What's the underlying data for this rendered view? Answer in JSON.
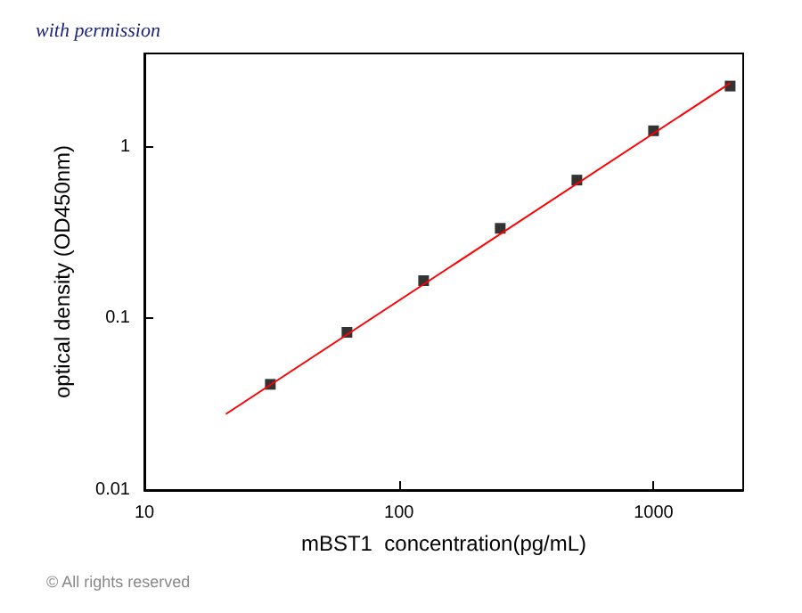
{
  "chart_data": {
    "type": "scatter",
    "xlabel": "mBST1  concentration(pg/mL)",
    "ylabel": "optical density (OD450nm)",
    "log": "xy",
    "xlim": [
      10,
      2250
    ],
    "ylim": [
      0.01,
      3.5
    ],
    "xticks": [
      10,
      100,
      1000
    ],
    "yticks": [
      0.01,
      0.1,
      1
    ],
    "grid": false,
    "marker": "square",
    "annotations": [
      "with permission",
      "© All rights reserved"
    ],
    "x": [
      31.25,
      62.5,
      125,
      250,
      500,
      1000,
      2000
    ],
    "series": [
      {
        "color": "#000000",
        "values": [
          0.0413,
          0.083,
          0.166,
          0.335,
          0.64,
          1.24,
          2.26
        ]
      },
      {
        "type": "line",
        "color": "#ff0000",
        "x": [
          20.9,
          2000
        ],
        "values": [
          0.0277,
          2.35
        ],
        "marker": "none",
        "line_style": "solid"
      }
    ]
  }
}
